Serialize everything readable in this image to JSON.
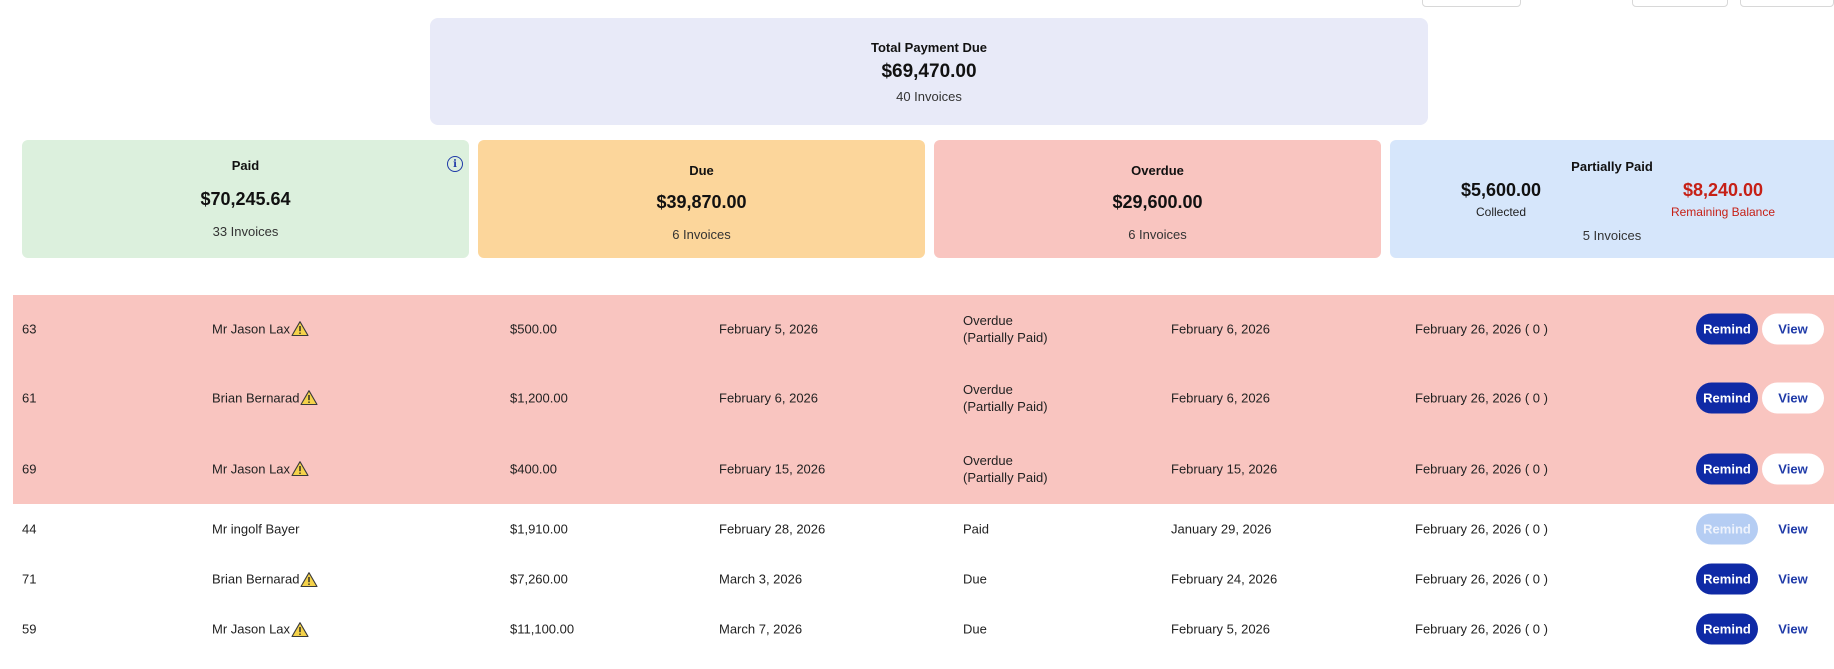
{
  "total": {
    "title": "Total Payment Due",
    "amount": "$69,470.00",
    "count": "40 Invoices"
  },
  "cards": {
    "paid": {
      "title": "Paid",
      "amount": "$70,245.64",
      "count": "33 Invoices",
      "icon": "info-icon"
    },
    "due": {
      "title": "Due",
      "amount": "$39,870.00",
      "count": "6 Invoices"
    },
    "overdue": {
      "title": "Overdue",
      "amount": "$29,600.00",
      "count": "6 Invoices"
    },
    "partial": {
      "title": "Partially Paid",
      "collected_amount": "$5,600.00",
      "collected_label": "Collected",
      "remaining_amount": "$8,240.00",
      "remaining_label": "Remaining Balance",
      "count": "5 Invoices"
    }
  },
  "colors": {
    "paid_bg": "#dcf0dd",
    "due_bg": "#fcd69b",
    "overdue_bg": "#f9c5c0",
    "partial_bg": "#d6e6fb",
    "total_bg": "#e8eaf8",
    "accent": "#0f2aa6",
    "remaining_red": "#c62016"
  },
  "buttons": {
    "remind": "Remind",
    "view": "View"
  },
  "rows": [
    {
      "id": "63",
      "name": "Mr Jason Lax",
      "warning": true,
      "amount": "$500.00",
      "due_date": "February 5, 2026",
      "status": "Overdue (Partially Paid)",
      "date2": "February 6, 2026",
      "reminder": "February 26, 2026 ( 0 )",
      "remind_enabled": true,
      "highlight": "overdue"
    },
    {
      "id": "61",
      "name": "Brian Bernarad",
      "warning": true,
      "amount": "$1,200.00",
      "due_date": "February 6, 2026",
      "status": "Overdue (Partially Paid)",
      "date2": "February 6, 2026",
      "reminder": "February 26, 2026 ( 0 )",
      "remind_enabled": true,
      "highlight": "overdue"
    },
    {
      "id": "69",
      "name": "Mr Jason Lax",
      "warning": true,
      "amount": "$400.00",
      "due_date": "February 15, 2026",
      "status": "Overdue (Partially Paid)",
      "date2": "February 15, 2026",
      "reminder": "February 26, 2026 ( 0 )",
      "remind_enabled": true,
      "highlight": "overdue"
    },
    {
      "id": "44",
      "name": "Mr ingolf Bayer",
      "warning": false,
      "amount": "$1,910.00",
      "due_date": "February 28, 2026",
      "status": "Paid",
      "date2": "January 29, 2026",
      "reminder": "February 26, 2026 ( 0 )",
      "remind_enabled": false,
      "highlight": "none"
    },
    {
      "id": "71",
      "name": "Brian Bernarad",
      "warning": true,
      "amount": "$7,260.00",
      "due_date": "March 3, 2026",
      "status": "Due",
      "date2": "February 24, 2026",
      "reminder": "February 26, 2026 ( 0 )",
      "remind_enabled": true,
      "highlight": "none"
    },
    {
      "id": "59",
      "name": "Mr Jason Lax",
      "warning": true,
      "amount": "$11,100.00",
      "due_date": "March 7, 2026",
      "status": "Due",
      "date2": "February 5, 2026",
      "reminder": "February 26, 2026 ( 0 )",
      "remind_enabled": true,
      "highlight": "none"
    }
  ]
}
